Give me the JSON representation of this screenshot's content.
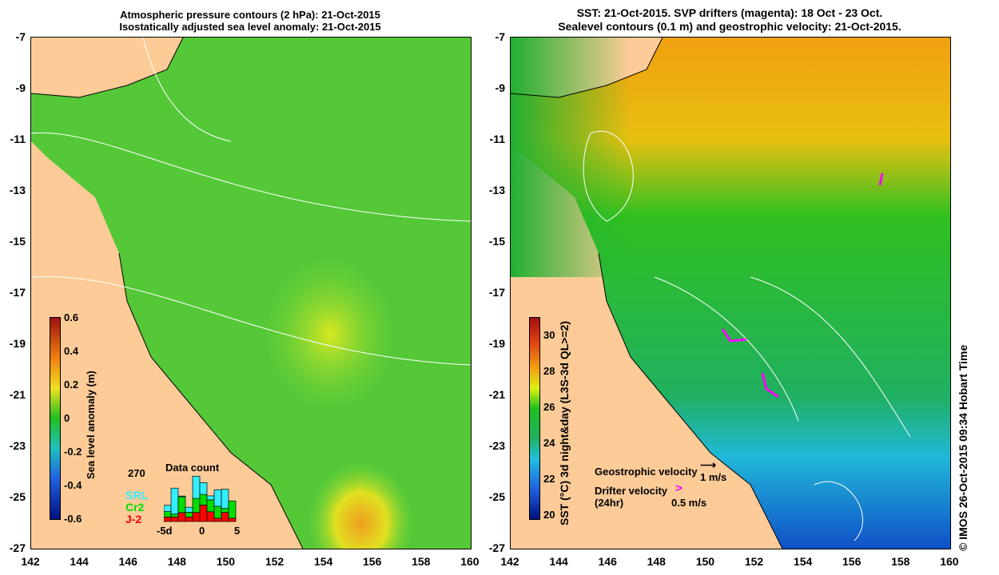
{
  "left_panel": {
    "title_line1": "Atmospheric pressure contours (2 hPa): 21-Oct-2015",
    "title_line2": "Isostatically adjusted sea level anomaly: 21-Oct-2015",
    "colorbar_label": "Sea level anomaly (m)",
    "colorbar_ticks": [
      "0.6",
      "0.4",
      "0.2",
      "0",
      "-0.2",
      "-0.4",
      "-0.6"
    ],
    "data_count": {
      "title": "Data count",
      "ymax_label": "270",
      "x_ticks": [
        "-5d",
        "0",
        "5"
      ],
      "legend": [
        {
          "name": "SRL",
          "color": "#33eeff"
        },
        {
          "name": "Cr2",
          "color": "#00dd00"
        },
        {
          "name": "J-2",
          "color": "#ff0000"
        }
      ],
      "bars": [
        {
          "J2": 25,
          "Cr2": 30,
          "SRL": 35
        },
        {
          "J2": 25,
          "Cr2": 16,
          "SRL": 144
        },
        {
          "J2": 49,
          "Cr2": 88,
          "SRL": 4
        },
        {
          "J2": 25,
          "Cr2": 26,
          "SRL": 28
        },
        {
          "J2": 50,
          "Cr2": 78,
          "SRL": 123
        },
        {
          "J2": 91,
          "Cr2": 59,
          "SRL": 65
        },
        {
          "J2": 54,
          "Cr2": 66,
          "SRL": 22
        },
        {
          "J2": 18,
          "Cr2": 66,
          "SRL": 92
        },
        {
          "J2": 50,
          "Cr2": 22,
          "SRL": 107
        },
        {
          "J2": 18,
          "Cr2": 96,
          "SRL": 0
        }
      ]
    }
  },
  "right_panel": {
    "title_line1": "SST: 21-Oct-2015. SVP drifters (magenta): 18 Oct - 23 Oct.",
    "title_line2": "Sealevel contours (0.1 m) and geostrophic velocity: 21-Oct-2015.",
    "colorbar_label": "SST (°C) 3d night&day (L3S-3d QL>=2)",
    "colorbar_ticks": [
      "30",
      "28",
      "26",
      "24",
      "22",
      "20"
    ],
    "geo_label": "Geostrophic velocity",
    "geo_scale": "1 m/s",
    "drifter_label": "Drifter velocity",
    "drifter_sub": "(24hr)",
    "drifter_scale": "0.5 m/s"
  },
  "lat_ticks": [
    "-7",
    "-9",
    "-11",
    "-13",
    "-15",
    "-17",
    "-19",
    "-21",
    "-23",
    "-25",
    "-27"
  ],
  "lon_ticks": [
    "142",
    "144",
    "146",
    "148",
    "150",
    "152",
    "154",
    "156",
    "158",
    "160"
  ],
  "credit": "© IMOS 26-Oct-2015 09:34 Hobart Time",
  "colors": {
    "land": "#fccb98",
    "ocean_left": "#44cc33",
    "ocean_right": "#22b040"
  }
}
